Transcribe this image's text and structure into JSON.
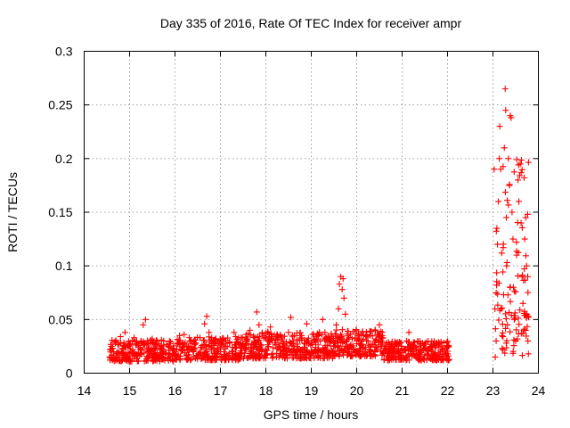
{
  "chart_data": {
    "type": "scatter",
    "title": "Day 335 of 2016, Rate Of TEC Index for receiver ampr",
    "xlabel": "GPS time / hours",
    "ylabel": "ROTI / TECUs",
    "xlim": [
      14,
      24
    ],
    "ylim": [
      0,
      0.3
    ],
    "xticks": [
      "14",
      "15",
      "16",
      "17",
      "18",
      "19",
      "20",
      "21",
      "22",
      "23",
      "24"
    ],
    "yticks": [
      "0",
      "0.05",
      "0.1",
      "0.15",
      "0.2",
      "0.25",
      "0.3"
    ],
    "grid": true,
    "marker": "plus",
    "color": "#ff0000",
    "series": [
      {
        "values_description_segments": [
          {
            "x_range": [
              14.55,
              16.0
            ],
            "baseline": 0.02,
            "spread": 0.02
          },
          {
            "x_range": [
              16.0,
              17.5
            ],
            "baseline": 0.022,
            "spread": 0.022
          },
          {
            "x_range": [
              17.5,
              19.5
            ],
            "baseline": 0.025,
            "spread": 0.025
          },
          {
            "x_range": [
              19.5,
              20.6
            ],
            "baseline": 0.027,
            "spread": 0.025
          },
          {
            "x_range": [
              20.6,
              22.05
            ],
            "baseline": 0.02,
            "spread": 0.018
          },
          {
            "x_range": [
              23.0,
              23.8
            ],
            "baseline": 0.03,
            "spread": 0.15
          }
        ],
        "points": [
          [
            14.6,
            0.025
          ],
          [
            14.62,
            0.012
          ],
          [
            14.65,
            0.02
          ],
          [
            14.7,
            0.03
          ],
          [
            14.75,
            0.018
          ],
          [
            14.8,
            0.034
          ],
          [
            14.85,
            0.022
          ],
          [
            14.9,
            0.038
          ],
          [
            14.95,
            0.015
          ],
          [
            15.0,
            0.027
          ],
          [
            15.05,
            0.02
          ],
          [
            15.1,
            0.033
          ],
          [
            15.15,
            0.016
          ],
          [
            15.2,
            0.024
          ],
          [
            15.25,
            0.03
          ],
          [
            15.3,
            0.045
          ],
          [
            15.35,
            0.05
          ],
          [
            15.4,
            0.028
          ],
          [
            15.45,
            0.02
          ],
          [
            15.5,
            0.032
          ],
          [
            15.55,
            0.018
          ],
          [
            15.6,
            0.026
          ],
          [
            15.65,
            0.014
          ],
          [
            15.7,
            0.022
          ],
          [
            15.75,
            0.03
          ],
          [
            15.8,
            0.019
          ],
          [
            15.85,
            0.025
          ],
          [
            15.9,
            0.013
          ],
          [
            15.95,
            0.021
          ],
          [
            16.0,
            0.018
          ],
          [
            16.05,
            0.028
          ],
          [
            16.1,
            0.035
          ],
          [
            16.15,
            0.022
          ],
          [
            16.2,
            0.036
          ],
          [
            16.25,
            0.017
          ],
          [
            16.3,
            0.025
          ],
          [
            16.35,
            0.03
          ],
          [
            16.4,
            0.02
          ],
          [
            16.45,
            0.028
          ],
          [
            16.5,
            0.016
          ],
          [
            16.55,
            0.033
          ],
          [
            16.6,
            0.024
          ],
          [
            16.65,
            0.046
          ],
          [
            16.7,
            0.053
          ],
          [
            16.75,
            0.038
          ],
          [
            16.8,
            0.022
          ],
          [
            16.85,
            0.03
          ],
          [
            16.9,
            0.015
          ],
          [
            16.95,
            0.026
          ],
          [
            17.0,
            0.02
          ],
          [
            17.05,
            0.031
          ],
          [
            17.1,
            0.017
          ],
          [
            17.15,
            0.025
          ],
          [
            17.2,
            0.028
          ],
          [
            17.25,
            0.02
          ],
          [
            17.3,
            0.038
          ],
          [
            17.35,
            0.024
          ],
          [
            17.4,
            0.033
          ],
          [
            17.45,
            0.019
          ],
          [
            17.5,
            0.027
          ],
          [
            17.55,
            0.022
          ],
          [
            17.6,
            0.032
          ],
          [
            17.65,
            0.04
          ],
          [
            17.7,
            0.018
          ],
          [
            17.75,
            0.03
          ],
          [
            17.8,
            0.057
          ],
          [
            17.85,
            0.045
          ],
          [
            17.9,
            0.026
          ],
          [
            17.95,
            0.035
          ],
          [
            18.0,
            0.022
          ],
          [
            18.05,
            0.03
          ],
          [
            18.1,
            0.043
          ],
          [
            18.15,
            0.018
          ],
          [
            18.2,
            0.028
          ],
          [
            18.25,
            0.036
          ],
          [
            18.3,
            0.024
          ],
          [
            18.35,
            0.033
          ],
          [
            18.4,
            0.02
          ],
          [
            18.45,
            0.029
          ],
          [
            18.5,
            0.038
          ],
          [
            18.55,
            0.052
          ],
          [
            18.6,
            0.03
          ],
          [
            18.65,
            0.017
          ],
          [
            18.7,
            0.027
          ],
          [
            18.75,
            0.035
          ],
          [
            18.8,
            0.022
          ],
          [
            18.85,
            0.031
          ],
          [
            18.9,
            0.046
          ],
          [
            18.95,
            0.019
          ],
          [
            19.0,
            0.028
          ],
          [
            19.05,
            0.036
          ],
          [
            19.1,
            0.024
          ],
          [
            19.15,
            0.015
          ],
          [
            19.2,
            0.03
          ],
          [
            19.25,
            0.05
          ],
          [
            19.3,
            0.038
          ],
          [
            19.35,
            0.026
          ],
          [
            19.4,
            0.033
          ],
          [
            19.45,
            0.021
          ],
          [
            19.5,
            0.028
          ],
          [
            19.55,
            0.045
          ],
          [
            19.6,
            0.06
          ],
          [
            19.62,
            0.083
          ],
          [
            19.65,
            0.09
          ],
          [
            19.68,
            0.078
          ],
          [
            19.7,
            0.088
          ],
          [
            19.72,
            0.07
          ],
          [
            19.75,
            0.055
          ],
          [
            19.8,
            0.035
          ],
          [
            19.85,
            0.025
          ],
          [
            19.9,
            0.032
          ],
          [
            19.95,
            0.02
          ],
          [
            20.0,
            0.03
          ],
          [
            20.05,
            0.018
          ],
          [
            20.1,
            0.026
          ],
          [
            20.15,
            0.035
          ],
          [
            20.2,
            0.022
          ],
          [
            20.25,
            0.03
          ],
          [
            20.3,
            0.016
          ],
          [
            20.35,
            0.027
          ],
          [
            20.4,
            0.02
          ],
          [
            20.45,
            0.036
          ],
          [
            20.5,
            0.045
          ],
          [
            20.55,
            0.03
          ],
          [
            20.6,
            0.021
          ],
          [
            20.65,
            0.028
          ],
          [
            20.7,
            0.015
          ],
          [
            20.75,
            0.024
          ],
          [
            20.8,
            0.018
          ],
          [
            20.85,
            0.026
          ],
          [
            20.9,
            0.02
          ],
          [
            20.95,
            0.028
          ],
          [
            21.0,
            0.014
          ],
          [
            21.05,
            0.022
          ],
          [
            21.1,
            0.03
          ],
          [
            21.15,
            0.038
          ],
          [
            21.2,
            0.025
          ],
          [
            21.25,
            0.018
          ],
          [
            21.3,
            0.024
          ],
          [
            21.35,
            0.013
          ],
          [
            21.4,
            0.022
          ],
          [
            21.45,
            0.028
          ],
          [
            21.5,
            0.017
          ],
          [
            21.55,
            0.021
          ],
          [
            21.6,
            0.014
          ],
          [
            21.65,
            0.024
          ],
          [
            21.7,
            0.018
          ],
          [
            21.75,
            0.026
          ],
          [
            21.8,
            0.015
          ],
          [
            21.85,
            0.02
          ],
          [
            21.9,
            0.012
          ],
          [
            21.95,
            0.018
          ],
          [
            22.0,
            0.025
          ],
          [
            22.02,
            0.016
          ],
          [
            23.05,
            0.015
          ],
          [
            23.07,
            0.03
          ],
          [
            23.08,
            0.082
          ],
          [
            23.1,
            0.12
          ],
          [
            23.12,
            0.16
          ],
          [
            23.14,
            0.2
          ],
          [
            23.15,
            0.23
          ],
          [
            23.17,
            0.19
          ],
          [
            23.18,
            0.06
          ],
          [
            23.2,
            0.035
          ],
          [
            23.22,
            0.022
          ],
          [
            23.25,
            0.21
          ],
          [
            23.27,
            0.265
          ],
          [
            23.28,
            0.245
          ],
          [
            23.3,
            0.1
          ],
          [
            23.32,
            0.045
          ],
          [
            23.34,
            0.2
          ],
          [
            23.36,
            0.175
          ],
          [
            23.38,
            0.24
          ],
          [
            23.4,
            0.238
          ],
          [
            23.42,
            0.15
          ],
          [
            23.44,
            0.125
          ],
          [
            23.45,
            0.08
          ],
          [
            23.47,
            0.05
          ],
          [
            23.5,
            0.03
          ],
          [
            23.52,
            0.11
          ],
          [
            23.55,
            0.18
          ],
          [
            23.57,
            0.16
          ],
          [
            23.6,
            0.195
          ],
          [
            23.62,
            0.14
          ],
          [
            23.64,
            0.09
          ],
          [
            23.66,
            0.065
          ],
          [
            23.68,
            0.04
          ],
          [
            23.7,
            0.125
          ],
          [
            23.72,
            0.145
          ],
          [
            23.74,
            0.1
          ],
          [
            23.75,
            0.055
          ],
          [
            23.77,
            0.03
          ],
          [
            23.78,
            0.018
          ]
        ]
      }
    ]
  }
}
